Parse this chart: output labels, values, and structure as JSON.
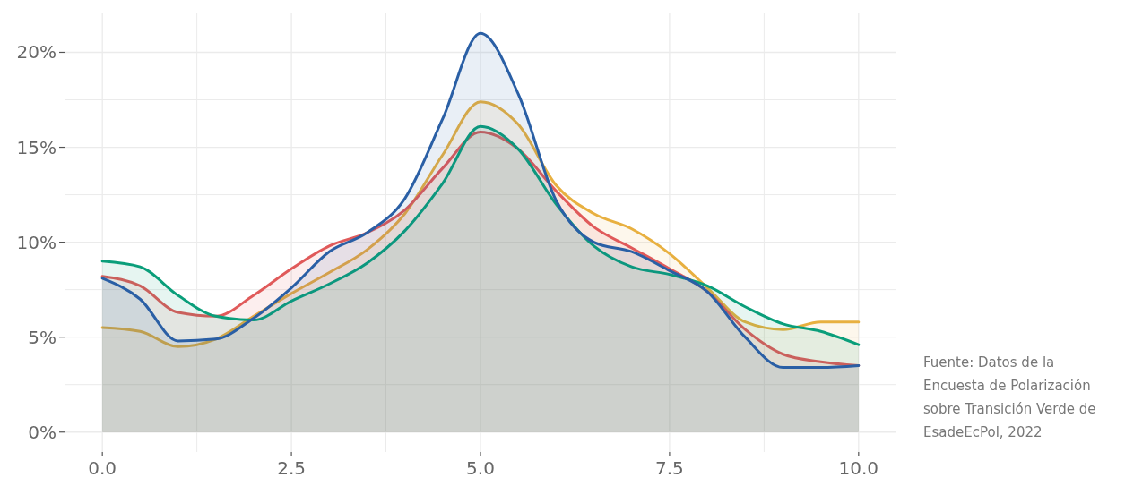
{
  "chart_data": {
    "type": "area",
    "x": [
      0,
      0.5,
      1,
      1.5,
      2,
      2.5,
      3,
      3.5,
      4,
      4.5,
      5,
      5.5,
      6,
      6.5,
      7,
      7.5,
      8,
      8.5,
      9,
      9.5,
      10
    ],
    "series": [
      {
        "color": "#e8b040",
        "values": [
          5.5,
          5.3,
          4.5,
          4.9,
          6.1,
          7.3,
          8.4,
          9.6,
          11.5,
          14.6,
          17.4,
          16.2,
          13.0,
          11.5,
          10.7,
          9.4,
          7.6,
          5.8,
          5.4,
          5.8,
          5.8
        ]
      },
      {
        "color": "#e05a5a",
        "values": [
          8.2,
          7.7,
          6.3,
          6.1,
          7.2,
          8.6,
          9.8,
          10.5,
          11.7,
          13.9,
          15.8,
          14.9,
          12.7,
          10.8,
          9.7,
          8.6,
          7.4,
          5.4,
          4.1,
          3.7,
          3.5
        ]
      },
      {
        "color": "#0a9e7a",
        "values": [
          9.0,
          8.7,
          7.2,
          6.1,
          5.9,
          6.9,
          7.8,
          8.9,
          10.6,
          13.1,
          16.1,
          14.9,
          12.0,
          9.8,
          8.7,
          8.3,
          7.7,
          6.6,
          5.7,
          5.3,
          4.6
        ]
      },
      {
        "color": "#2a5fa5",
        "values": [
          8.1,
          7.0,
          4.8,
          4.9,
          6.0,
          7.6,
          9.5,
          10.5,
          12.3,
          16.5,
          21.0,
          17.8,
          12.2,
          10.0,
          9.5,
          8.5,
          7.4,
          5.0,
          3.4,
          3.4,
          3.5
        ]
      }
    ],
    "xlim": [
      -0.5,
      10.5
    ],
    "ylim": [
      -1.05,
      22.05
    ],
    "xticks": [
      {
        "value": 0,
        "label": "0.0"
      },
      {
        "value": 1.25,
        "label": null
      },
      {
        "value": 2.5,
        "label": "2.5"
      },
      {
        "value": 3.75,
        "label": null
      },
      {
        "value": 5,
        "label": "5.0"
      },
      {
        "value": 6.25,
        "label": null
      },
      {
        "value": 7.5,
        "label": "7.5"
      },
      {
        "value": 8.75,
        "label": null
      },
      {
        "value": 10,
        "label": "10.0"
      }
    ],
    "yticks": [
      {
        "value": 0,
        "label": "0%"
      },
      {
        "value": 2.5,
        "label": null
      },
      {
        "value": 5,
        "label": "5%"
      },
      {
        "value": 7.5,
        "label": null
      },
      {
        "value": 10,
        "label": "10%"
      },
      {
        "value": 12.5,
        "label": null
      },
      {
        "value": 15,
        "label": "15%"
      },
      {
        "value": 17.5,
        "label": null
      },
      {
        "value": 20,
        "label": "20%"
      }
    ],
    "grid": true,
    "line_style": "solid",
    "marker": "none",
    "annotations": [
      "Fuente: Datos de la Encuesta de Polarización sobre Transición Verde de EsadeEcPol, 2022"
    ]
  }
}
